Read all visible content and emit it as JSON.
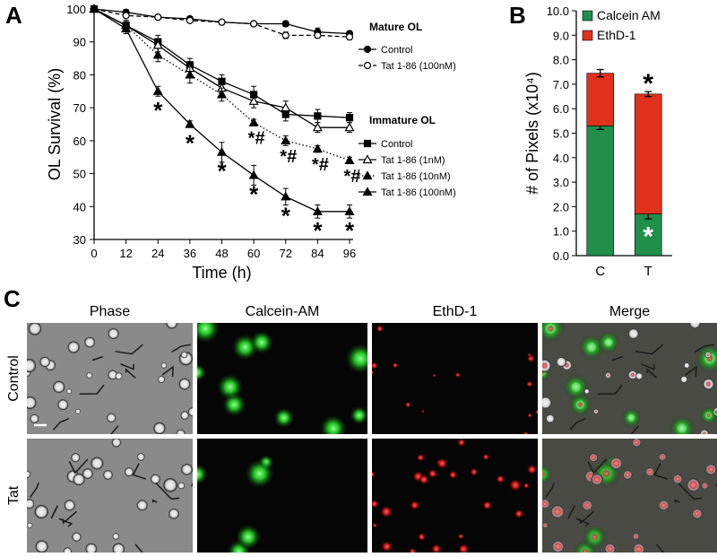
{
  "chart_data": [
    {
      "type": "line",
      "panel": "A",
      "xlabel": "Time (h)",
      "ylabel": "OL Survival (%)",
      "x": [
        0,
        12,
        24,
        36,
        48,
        60,
        72,
        84,
        96
      ],
      "xlim": [
        0,
        96
      ],
      "xticks": [
        0,
        12,
        24,
        36,
        48,
        60,
        72,
        84,
        96
      ],
      "ylim": [
        30,
        100
      ],
      "yticks": [
        30,
        40,
        50,
        60,
        70,
        80,
        90,
        100
      ],
      "groups": [
        {
          "title": "Mature OL",
          "series": [
            {
              "name": "Control",
              "color": "#000000",
              "marker": "circle",
              "filled": true,
              "dash": "solid",
              "values": [
                100,
                99,
                97.5,
                97,
                96,
                95.5,
                95.5,
                93,
                92.5
              ],
              "errors": [
                0.5,
                0.8,
                0.6,
                0.7,
                0.6,
                0.6,
                0.8,
                1.2,
                0.8
              ]
            },
            {
              "name": "Tat 1-86 (100nM)",
              "color": "#000000",
              "marker": "circle",
              "filled": false,
              "dash": "dashed",
              "values": [
                100,
                98,
                97.5,
                96.5,
                96,
                95.5,
                92,
                92,
                91.5
              ],
              "errors": [
                0.5,
                0.7,
                0.6,
                0.6,
                0.6,
                0.6,
                1,
                0.8,
                0.8
              ]
            }
          ]
        },
        {
          "title": "Immature OL",
          "series": [
            {
              "name": "Control",
              "color": "#000000",
              "marker": "square",
              "filled": true,
              "dash": "solid",
              "values": [
                100,
                95,
                90,
                83,
                78,
                74,
                68,
                67.5,
                67
              ],
              "errors": [
                0.5,
                1.5,
                2,
                2,
                2,
                2.5,
                2,
                2,
                1.5
              ]
            },
            {
              "name": "Tat 1-86 (1nM)",
              "color": "#000000",
              "marker": "triangle",
              "filled": false,
              "dash": "solid",
              "values": [
                100,
                95,
                89,
                82,
                76,
                72,
                70,
                64,
                64
              ],
              "errors": [
                0.5,
                1.5,
                2,
                2,
                2,
                2,
                2,
                1.5,
                1.5
              ]
            },
            {
              "name": "Tat 1-86 (10nM)",
              "color": "#000000",
              "marker": "triangle",
              "filled": true,
              "dash": "dotted",
              "values": [
                100,
                95,
                86,
                80,
                74,
                65.5,
                60,
                57.5,
                54
              ],
              "errors": [
                0.5,
                1.5,
                2,
                2.5,
                2,
                1,
                1.5,
                1,
                1
              ],
              "point_labels": [
                null,
                null,
                null,
                null,
                null,
                "*#",
                "*#",
                "*#",
                "*#"
              ]
            },
            {
              "name": "Tat 1-86 (100nM)",
              "color": "#000000",
              "marker": "triangle",
              "filled": true,
              "dash": "solid",
              "values": [
                100,
                94,
                75,
                65,
                56.5,
                49.5,
                43,
                38.5,
                38.5
              ],
              "errors": [
                0.5,
                1.5,
                1.5,
                1,
                3,
                3,
                2.5,
                2,
                2
              ],
              "point_labels": [
                null,
                null,
                "*",
                "*",
                "*",
                "*",
                "*",
                "*",
                "*"
              ]
            }
          ]
        }
      ]
    },
    {
      "type": "stacked-bar",
      "panel": "B",
      "ylabel": "# of Pixels (x10⁴)",
      "categories": [
        "C",
        "T"
      ],
      "ylim": [
        0,
        10
      ],
      "yticks": [
        {
          "value": 0,
          "label": "0.0"
        },
        {
          "value": 1,
          "label": "1.0"
        },
        {
          "value": 2,
          "label": "2.0"
        },
        {
          "value": 3,
          "label": "3.0"
        },
        {
          "value": 4,
          "label": "4.0"
        },
        {
          "value": 5,
          "label": "5.0"
        },
        {
          "value": 6,
          "label": "6.0"
        },
        {
          "value": 7,
          "label": "7.0"
        },
        {
          "value": 8,
          "label": "8.0"
        },
        {
          "value": 9,
          "label": "9.0"
        },
        {
          "value": 10,
          "label": "10.0"
        }
      ],
      "series": [
        {
          "name": "Calcein AM",
          "color": "#1f8f4a",
          "values": [
            5.3,
            1.7
          ],
          "errors": [
            0.15,
            0.2
          ],
          "point_labels": [
            null,
            "*"
          ],
          "label_color": "#ffffff"
        },
        {
          "name": "EthD-1",
          "color": "#e0301e",
          "values": [
            2.15,
            4.9
          ],
          "errors": [
            0.15,
            0.1
          ],
          "point_labels": [
            null,
            "*"
          ],
          "label_color": "#000000"
        }
      ]
    }
  ],
  "panel_c": {
    "panel": "C",
    "columns": [
      "Phase",
      "Calcein-AM",
      "EthD-1",
      "Merge"
    ],
    "rows": [
      "Control",
      "Tat"
    ]
  }
}
